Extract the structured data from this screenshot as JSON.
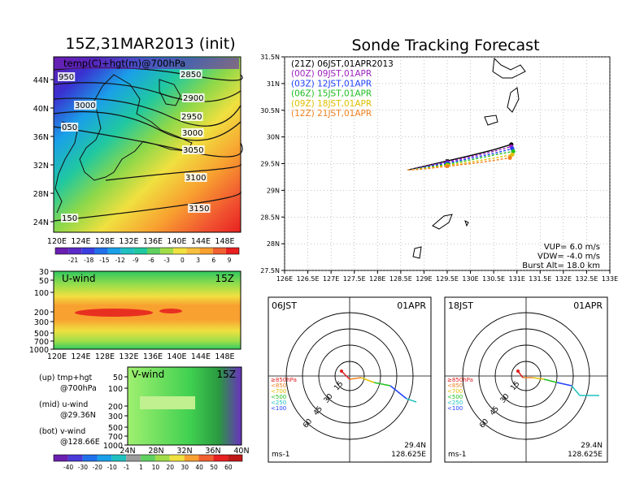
{
  "left": {
    "title": "15Z,31MAR2013 (init)",
    "map": {
      "label": "temp(C)+hgt(m)@700hPa",
      "lon_ticks": [
        "120E",
        "124E",
        "128E",
        "132E",
        "136E",
        "140E",
        "144E",
        "148E"
      ],
      "lat_ticks": [
        "44N",
        "40N",
        "36N",
        "32N",
        "28N",
        "24N"
      ],
      "contour_labels": [
        "2850",
        "2900",
        "2950",
        "3000",
        "3050",
        "3100",
        "3150",
        "950",
        "3000",
        "050",
        "150"
      ],
      "colorbar_ticks": [
        "-21",
        "-18",
        "-15",
        "-12",
        "-9",
        "-6",
        "-3",
        "0",
        "3",
        "6",
        "9"
      ]
    },
    "uwind": {
      "label": "U-wind",
      "time": "15Z",
      "p_ticks": [
        "30",
        "50",
        "100",
        "200",
        "300",
        "500",
        "700",
        "1000"
      ],
      "lon_ticks": [
        "120E",
        "124E",
        "128E",
        "132E",
        "136E",
        "140E",
        "144E",
        "148E"
      ]
    },
    "vwind": {
      "label": "V-wind",
      "time": "15Z",
      "p_ticks": [
        "50",
        "100",
        "200",
        "300",
        "500",
        "700",
        "1000"
      ],
      "lat_ticks": [
        "24N",
        "28N",
        "32N",
        "36N",
        "40N"
      ]
    },
    "notes": [
      {
        "head": "(up) tmp+hgt",
        "sub": "@700hPa"
      },
      {
        "head": "(mid) u-wind",
        "sub": "@29.36N"
      },
      {
        "head": "(bot) v-wind",
        "sub": "@128.66E"
      }
    ],
    "wind_colorbar_ticks": [
      "-40",
      "-30",
      "-20",
      "-10",
      "-1",
      "1",
      "10",
      "20",
      "30",
      "40",
      "50",
      "60"
    ]
  },
  "right": {
    "title": "Sonde Tracking Forecast",
    "legend": [
      {
        "text": "(21Z)  06JST,01APR2013",
        "color": "#000000"
      },
      {
        "text": "(00Z)  09JST,01APR",
        "color": "#a020c0"
      },
      {
        "text": "(03Z)  12JST,01APR",
        "color": "#2040ff"
      },
      {
        "text": "(06Z)  15JST,01APR",
        "color": "#20c020"
      },
      {
        "text": "(09Z)  18JST,01APR",
        "color": "#e0c000"
      },
      {
        "text": "(12Z)  21JST,01APR",
        "color": "#f08020"
      }
    ],
    "params": [
      "VUP=  6.0  m/s",
      "VDW= -4.0  m/s",
      "Burst Alt=  18.0  km"
    ],
    "x_ticks": [
      "126E",
      "126.5E",
      "127E",
      "127.5E",
      "128E",
      "128.5E",
      "129E",
      "129.5E",
      "130E",
      "130.5E",
      "131E",
      "131.5E",
      "132E",
      "132.5E",
      "133E"
    ],
    "y_ticks": [
      "31.5N",
      "31N",
      "30.5N",
      "30N",
      "29.5N",
      "29N",
      "28.5N",
      "28N",
      "27.5N"
    ]
  },
  "polars": [
    {
      "time": "06JST",
      "date": "01APR",
      "lat": "29.4N",
      "lon": "128.625E",
      "unit": "ms-1",
      "ring_labels": [
        "15",
        "30",
        "45",
        "60"
      ],
      "pressure_legend": [
        "≥850hPa",
        "<850",
        "<700",
        "<500",
        "<250",
        "<100"
      ]
    },
    {
      "time": "18JST",
      "date": "01APR",
      "lat": "29.4N",
      "lon": "128.625E",
      "unit": "ms-1",
      "ring_labels": [
        "15",
        "30",
        "45",
        "60"
      ],
      "pressure_legend": [
        "≥850hPa",
        "<850",
        "<700",
        "<500",
        "<250",
        "<100"
      ]
    }
  ],
  "chart_data": [
    {
      "type": "line",
      "title": "Sonde Tracking Forecast",
      "xlim": [
        126,
        133
      ],
      "ylim": [
        27.5,
        31.5
      ],
      "series": [
        {
          "name": "(21Z) 06JST,01APR2013",
          "color": "#000000",
          "points": [
            [
              128.65,
              29.38
            ],
            [
              129.0,
              29.45
            ],
            [
              129.5,
              29.55
            ],
            [
              130.0,
              29.65
            ],
            [
              130.5,
              29.76
            ],
            [
              130.88,
              29.86
            ]
          ]
        },
        {
          "name": "(00Z) 09JST,01APR",
          "color": "#a020c0",
          "points": [
            [
              128.65,
              29.38
            ],
            [
              129.0,
              29.44
            ],
            [
              129.5,
              29.53
            ],
            [
              130.0,
              29.63
            ],
            [
              130.5,
              29.73
            ],
            [
              130.88,
              29.82
            ]
          ]
        },
        {
          "name": "(03Z) 12JST,01APR",
          "color": "#2040ff",
          "points": [
            [
              128.65,
              29.38
            ],
            [
              129.0,
              29.43
            ],
            [
              129.5,
              29.51
            ],
            [
              130.0,
              29.6
            ],
            [
              130.5,
              29.69
            ],
            [
              130.9,
              29.78
            ]
          ]
        },
        {
          "name": "(06Z) 15JST,01APR",
          "color": "#20c020",
          "points": [
            [
              128.65,
              29.38
            ],
            [
              129.0,
              29.42
            ],
            [
              129.5,
              29.49
            ],
            [
              130.0,
              29.57
            ],
            [
              130.5,
              29.66
            ],
            [
              130.92,
              29.73
            ]
          ]
        },
        {
          "name": "(09Z) 18JST,01APR",
          "color": "#e0c000",
          "points": [
            [
              128.65,
              29.38
            ],
            [
              129.0,
              29.41
            ],
            [
              129.5,
              29.47
            ],
            [
              130.0,
              29.53
            ],
            [
              130.5,
              29.6
            ],
            [
              130.9,
              29.67
            ]
          ]
        },
        {
          "name": "(12Z) 21JST,01APR",
          "color": "#f08020",
          "points": [
            [
              128.65,
              29.38
            ],
            [
              129.0,
              29.4
            ],
            [
              129.5,
              29.45
            ],
            [
              130.0,
              29.5
            ],
            [
              130.5,
              29.56
            ],
            [
              130.85,
              29.61
            ]
          ]
        }
      ]
    }
  ]
}
